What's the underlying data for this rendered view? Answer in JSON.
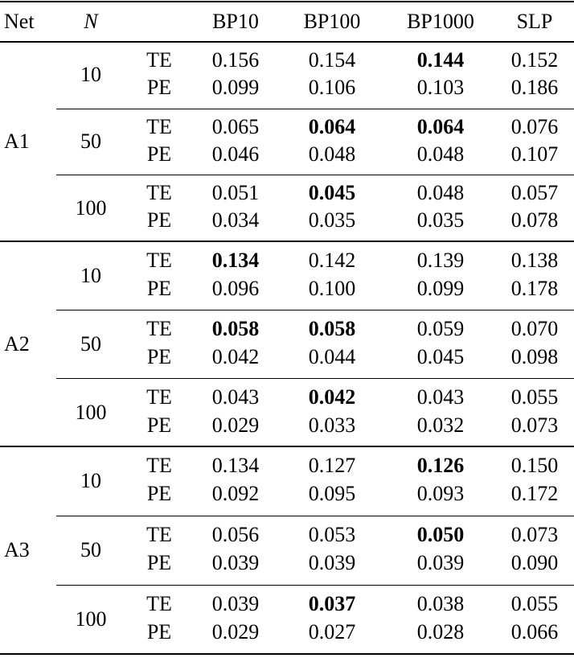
{
  "header": {
    "net": "Net",
    "n": "N",
    "columns": [
      "BP10",
      "BP100",
      "BP1000",
      "SLP"
    ]
  },
  "groups": [
    {
      "net": "A1",
      "blocks": [
        {
          "n": "10",
          "rows": [
            {
              "metric": "TE",
              "values": [
                "0.156",
                "0.154",
                "0.144",
                "0.152"
              ],
              "bold": [
                2
              ]
            },
            {
              "metric": "PE",
              "values": [
                "0.099",
                "0.106",
                "0.103",
                "0.186"
              ],
              "bold": []
            }
          ]
        },
        {
          "n": "50",
          "rows": [
            {
              "metric": "TE",
              "values": [
                "0.065",
                "0.064",
                "0.064",
                "0.076"
              ],
              "bold": [
                1,
                2
              ]
            },
            {
              "metric": "PE",
              "values": [
                "0.046",
                "0.048",
                "0.048",
                "0.107"
              ],
              "bold": []
            }
          ]
        },
        {
          "n": "100",
          "rows": [
            {
              "metric": "TE",
              "values": [
                "0.051",
                "0.045",
                "0.048",
                "0.057"
              ],
              "bold": [
                1
              ]
            },
            {
              "metric": "PE",
              "values": [
                "0.034",
                "0.035",
                "0.035",
                "0.078"
              ],
              "bold": []
            }
          ]
        }
      ]
    },
    {
      "net": "A2",
      "blocks": [
        {
          "n": "10",
          "rows": [
            {
              "metric": "TE",
              "values": [
                "0.134",
                "0.142",
                "0.139",
                "0.138"
              ],
              "bold": [
                0
              ]
            },
            {
              "metric": "PE",
              "values": [
                "0.096",
                "0.100",
                "0.099",
                "0.178"
              ],
              "bold": []
            }
          ]
        },
        {
          "n": "50",
          "rows": [
            {
              "metric": "TE",
              "values": [
                "0.058",
                "0.058",
                "0.059",
                "0.070"
              ],
              "bold": [
                0,
                1
              ]
            },
            {
              "metric": "PE",
              "values": [
                "0.042",
                "0.044",
                "0.045",
                "0.098"
              ],
              "bold": []
            }
          ]
        },
        {
          "n": "100",
          "rows": [
            {
              "metric": "TE",
              "values": [
                "0.043",
                "0.042",
                "0.043",
                "0.055"
              ],
              "bold": [
                1
              ]
            },
            {
              "metric": "PE",
              "values": [
                "0.029",
                "0.033",
                "0.032",
                "0.073"
              ],
              "bold": []
            }
          ]
        }
      ]
    },
    {
      "net": "A3",
      "blocks": [
        {
          "n": "10",
          "rows": [
            {
              "metric": "TE",
              "values": [
                "0.134",
                "0.127",
                "0.126",
                "0.150"
              ],
              "bold": [
                2
              ]
            },
            {
              "metric": "PE",
              "values": [
                "0.092",
                "0.095",
                "0.093",
                "0.172"
              ],
              "bold": []
            }
          ]
        },
        {
          "n": "50",
          "rows": [
            {
              "metric": "TE",
              "values": [
                "0.056",
                "0.053",
                "0.050",
                "0.073"
              ],
              "bold": [
                2
              ]
            },
            {
              "metric": "PE",
              "values": [
                "0.039",
                "0.039",
                "0.039",
                "0.090"
              ],
              "bold": []
            }
          ]
        },
        {
          "n": "100",
          "rows": [
            {
              "metric": "TE",
              "values": [
                "0.039",
                "0.037",
                "0.038",
                "0.055"
              ],
              "bold": [
                1
              ]
            },
            {
              "metric": "PE",
              "values": [
                "0.029",
                "0.027",
                "0.028",
                "0.066"
              ],
              "bold": []
            }
          ]
        }
      ]
    }
  ]
}
